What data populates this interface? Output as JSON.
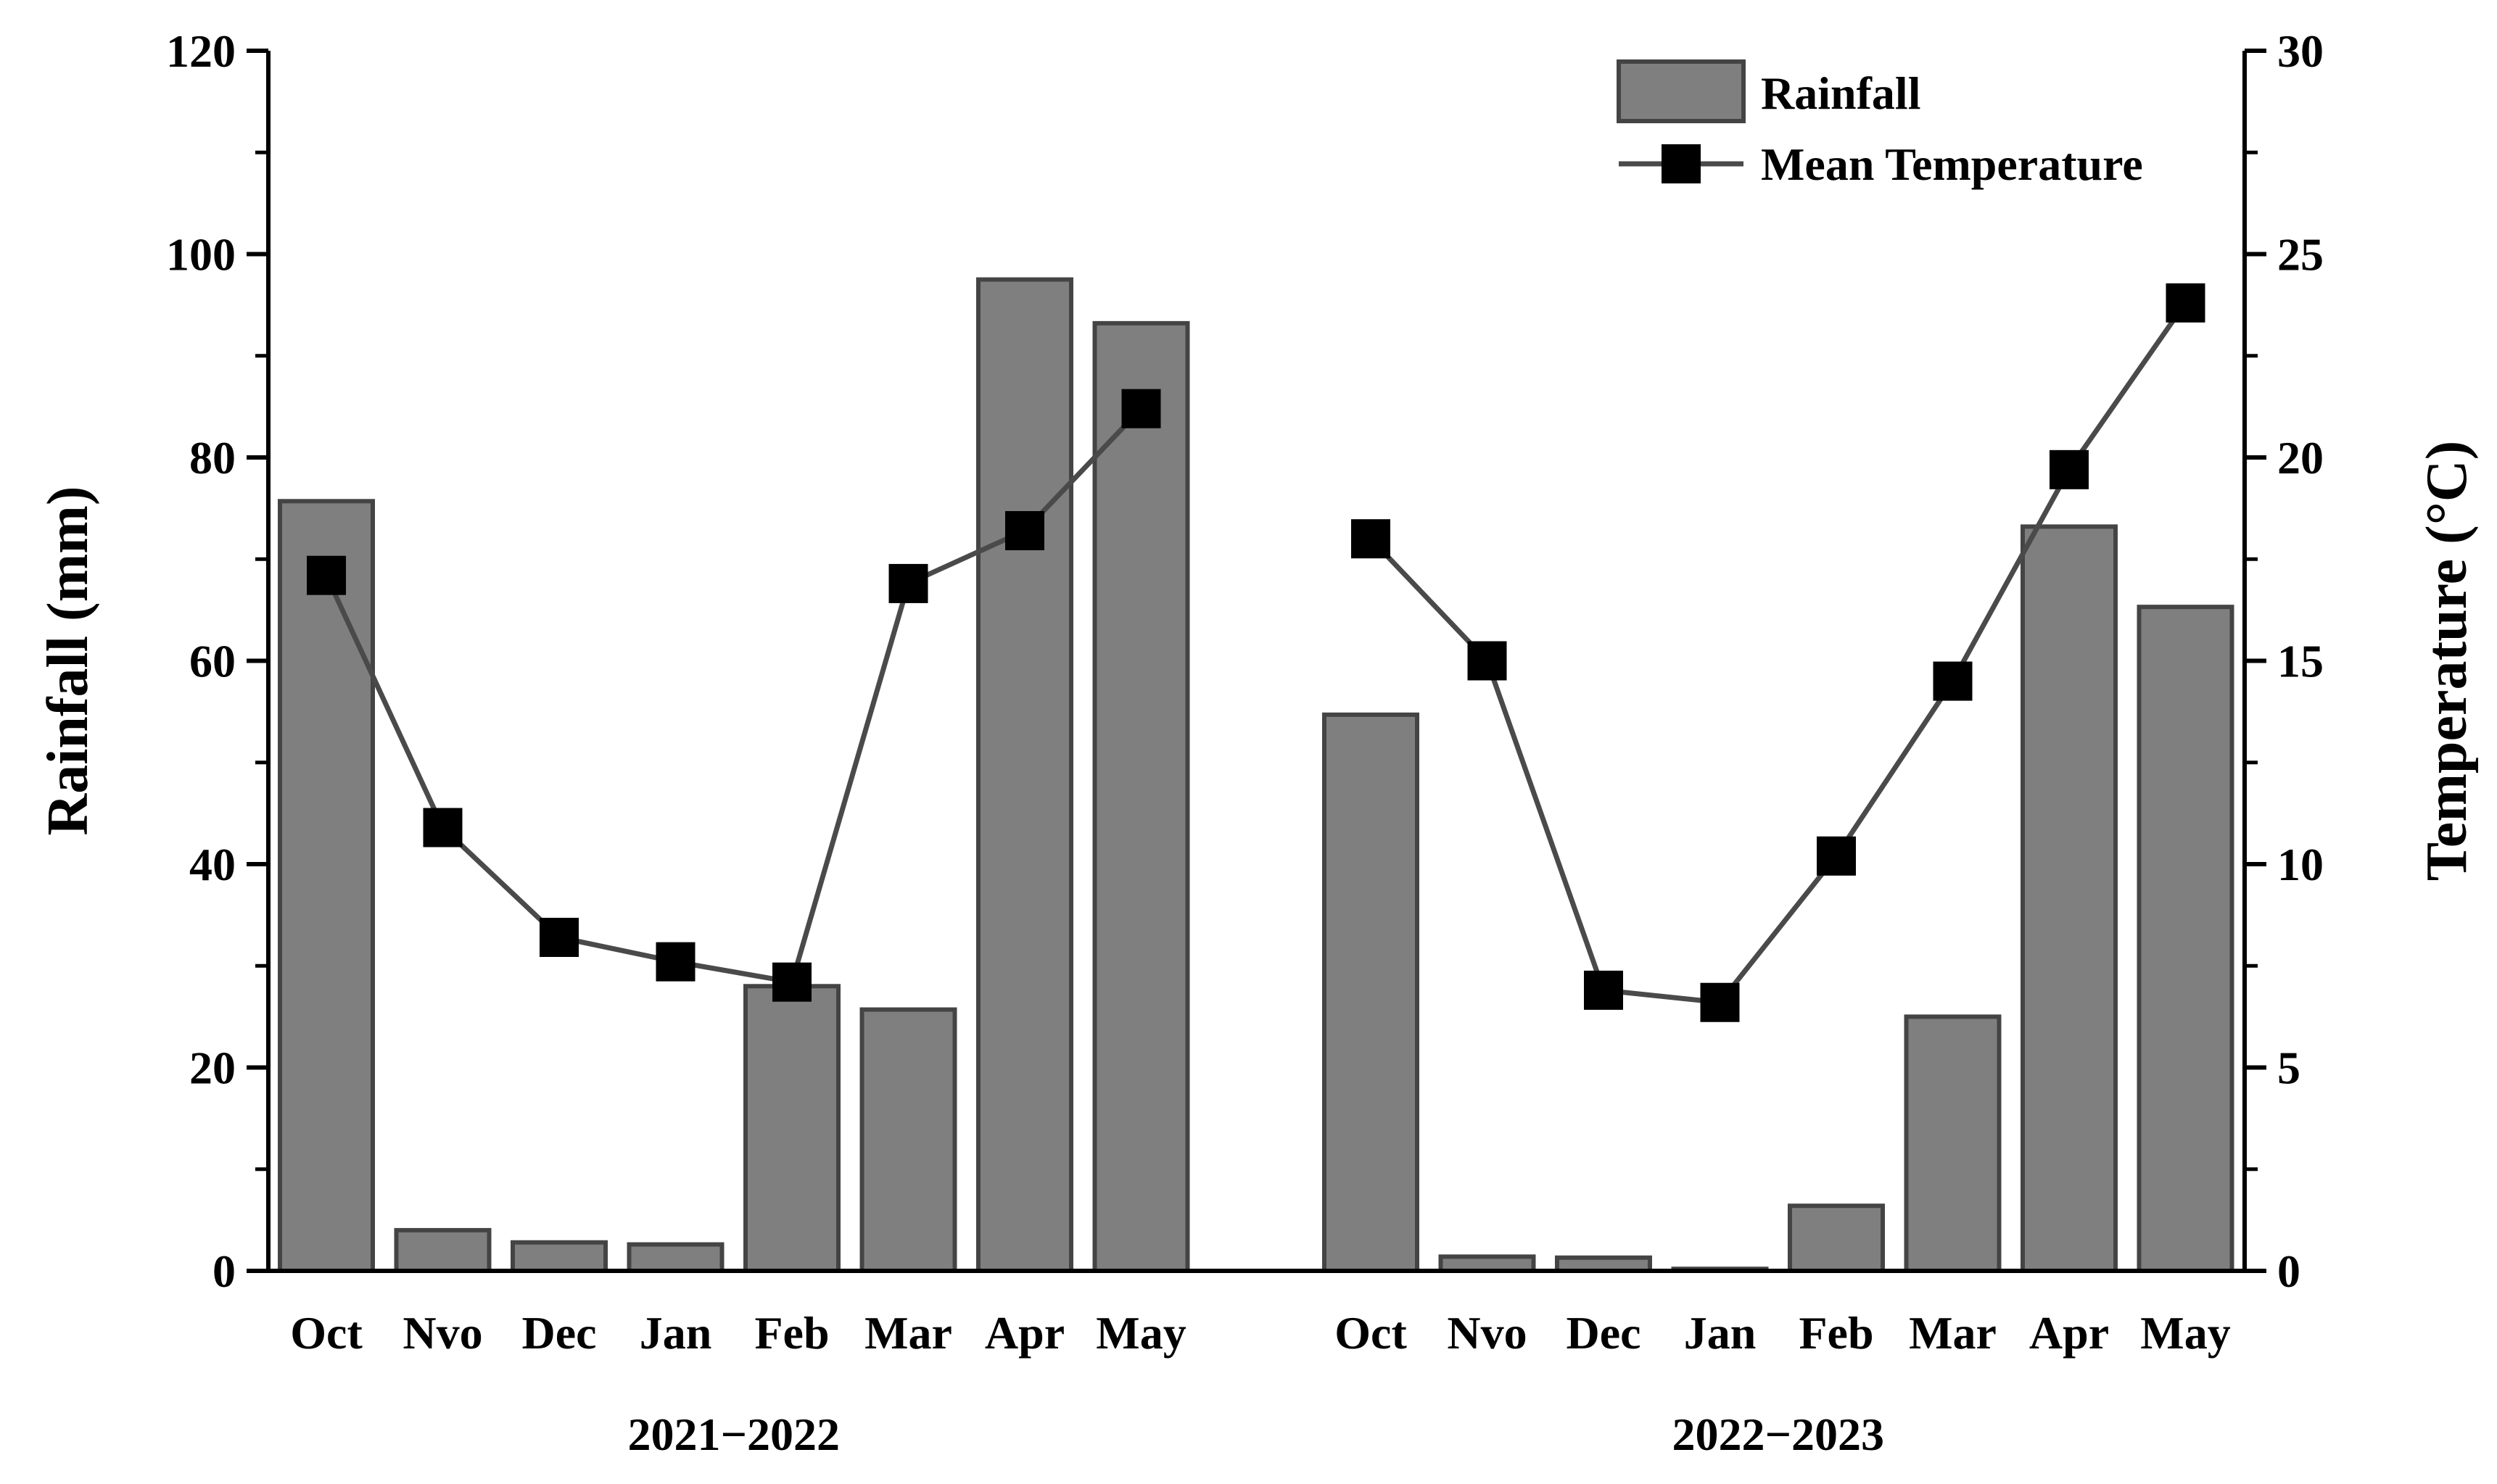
{
  "chart_data": {
    "type": "bar+line",
    "title": "",
    "groups": [
      {
        "label": "2021−2022",
        "categories": [
          "Oct",
          "Nvo",
          "Dec",
          "Jan",
          "Feb",
          "Mar",
          "Apr",
          "May"
        ],
        "rainfall": [
          75.7,
          4.0,
          2.8,
          2.6,
          28.0,
          25.7,
          97.5,
          93.2
        ],
        "temperature": [
          17.1,
          10.9,
          8.2,
          7.6,
          7.1,
          16.9,
          18.2,
          21.2
        ]
      },
      {
        "label": "2022−2023",
        "categories": [
          "Oct",
          "Nvo",
          "Dec",
          "Jan",
          "Feb",
          "Mar",
          "Apr",
          "May"
        ],
        "rainfall": [
          54.7,
          1.4,
          1.3,
          0.2,
          6.4,
          25.0,
          73.2,
          65.3
        ],
        "temperature": [
          18.0,
          15.0,
          6.9,
          6.6,
          10.2,
          14.5,
          19.7,
          23.8
        ]
      }
    ],
    "series": [
      {
        "name": "Rainfall",
        "kind": "bar",
        "axis": "left",
        "color": "#7f7f7f",
        "edge": "#444444"
      },
      {
        "name": "Mean Temperature",
        "kind": "line",
        "axis": "right",
        "color": "#4a4a4a",
        "marker": "#000000"
      }
    ],
    "y_left": {
      "label": "Rainfall (mm)",
      "lim": [
        0,
        120
      ],
      "ticks": [
        0,
        20,
        40,
        60,
        80,
        100,
        120
      ]
    },
    "y_right": {
      "label": "Temperature (°C)",
      "lim": [
        0,
        30
      ],
      "ticks": [
        0,
        5,
        10,
        15,
        20,
        25,
        30
      ]
    },
    "legend": {
      "position": "top-right",
      "entries": [
        "Rainfall",
        "Mean Temperature"
      ]
    }
  }
}
